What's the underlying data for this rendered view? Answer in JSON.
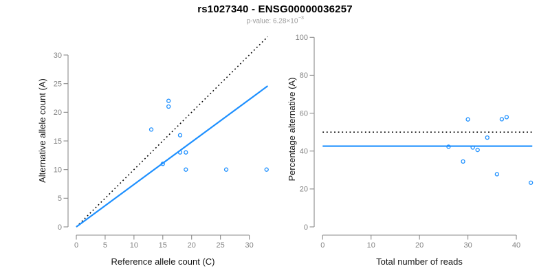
{
  "header": {
    "title": "rs1027340 - ENSG00000036257",
    "subtitle": {
      "prefix": "p-value: 6.28×10",
      "exponent": "−3"
    }
  },
  "colors": {
    "accent_blue": "#1E90FF",
    "dotted_line_black": "#000000",
    "axis_gray": "#8a8a8a",
    "tick_label_gray": "#828282",
    "subtitle_gray": "#9b9b9b",
    "title_black": "#000000"
  },
  "chart_data": [
    {
      "id": "allele-counts",
      "type": "scatter",
      "title": "",
      "xlabel": "Reference allele count (C)",
      "ylabel": "Alternative allele count (A)",
      "xlim": [
        0,
        30
      ],
      "ylim": [
        0,
        30
      ],
      "x_ticks": [
        0,
        5,
        10,
        15,
        20,
        25,
        30
      ],
      "y_ticks": [
        0,
        5,
        10,
        15,
        20,
        25,
        30
      ],
      "grid": false,
      "legend": null,
      "points": [
        [
          13,
          17
        ],
        [
          15,
          11
        ],
        [
          16,
          21
        ],
        [
          16,
          22
        ],
        [
          18,
          13
        ],
        [
          18,
          16
        ],
        [
          19,
          10
        ],
        [
          19,
          13
        ],
        [
          26,
          10
        ],
        [
          33,
          10
        ]
      ],
      "lines": [
        {
          "name": "identity-line",
          "type": "abline",
          "intercept": 0,
          "slope": 1,
          "style": "dotted",
          "color": "#000000",
          "x_range": [
            0,
            33.2
          ]
        },
        {
          "name": "fit-line",
          "type": "abline",
          "intercept": 0,
          "slope": 0.741,
          "style": "solid",
          "color": "#1E90FF",
          "x_range": [
            0,
            33.2
          ]
        }
      ]
    },
    {
      "id": "percentage-alternative",
      "type": "scatter",
      "title": "",
      "xlabel": "Total number of reads",
      "ylabel": "Percentage alternative (A)",
      "xlim": [
        0,
        40
      ],
      "ylim": [
        0,
        100
      ],
      "x_ticks": [
        0,
        10,
        20,
        30,
        40
      ],
      "y_ticks": [
        0,
        20,
        40,
        60,
        80,
        100
      ],
      "grid": false,
      "legend": null,
      "points": [
        [
          30,
          56.7
        ],
        [
          26,
          42.3
        ],
        [
          37,
          56.8
        ],
        [
          38,
          57.9
        ],
        [
          31,
          41.9
        ],
        [
          34,
          47.1
        ],
        [
          29,
          34.5
        ],
        [
          32,
          40.6
        ],
        [
          36,
          27.8
        ],
        [
          43,
          23.3
        ]
      ],
      "lines": [
        {
          "name": "expected-50pct-line",
          "type": "hline",
          "y": 50,
          "style": "dotted",
          "color": "#000000",
          "x_range": [
            0,
            43.3
          ]
        },
        {
          "name": "mean-pct-line",
          "type": "hline",
          "y": 42.6,
          "style": "solid",
          "color": "#1E90FF",
          "x_range": [
            0,
            43.3
          ]
        }
      ]
    }
  ]
}
